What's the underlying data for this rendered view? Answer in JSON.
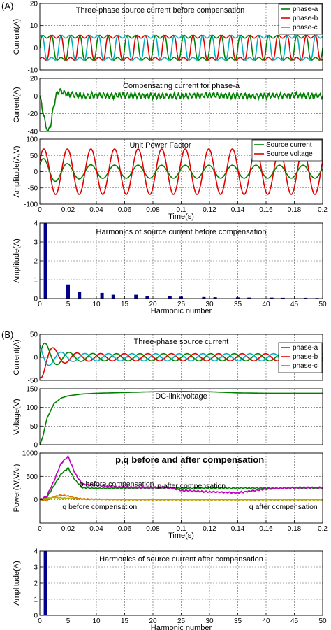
{
  "panels_label": {
    "a": "(A)",
    "b": "(B)"
  },
  "chart_data": [
    {
      "id": "a1",
      "type": "line",
      "title": "Three-phase source current before compensation",
      "ylabel": "Current(A)",
      "xlim": [
        0,
        0.2
      ],
      "ylim": [
        -10,
        20
      ],
      "xticks": [],
      "yticks": [
        -10,
        0,
        10,
        20
      ],
      "grid": true,
      "legend": {
        "position": "top-right",
        "entries": [
          "phase-a",
          "phase-b",
          "phase-c"
        ]
      },
      "series": [
        {
          "name": "phase-a",
          "color": "#008000",
          "kind": "sine",
          "amp": 6,
          "freq": 50,
          "phase": 0,
          "offset": 0,
          "squareness": 0.7
        },
        {
          "name": "phase-b",
          "color": "#e00000",
          "kind": "sine",
          "amp": 6,
          "freq": 50,
          "phase": -2.094,
          "offset": 0,
          "squareness": 0.7
        },
        {
          "name": "phase-c",
          "color": "#00b0c0",
          "kind": "sine",
          "amp": 6,
          "freq": 50,
          "phase": 2.094,
          "offset": 0,
          "squareness": 0.7
        }
      ]
    },
    {
      "id": "a2",
      "type": "line",
      "title": "Compensating current for phase-a",
      "ylabel": "Current(A)",
      "xlim": [
        0,
        0.2
      ],
      "ylim": [
        -40,
        20
      ],
      "xticks": [],
      "yticks": [
        -40,
        -20,
        0,
        20
      ],
      "grid": true,
      "series": [
        {
          "name": "",
          "color": "#008000",
          "kind": "points",
          "x": [
            0,
            0.002,
            0.004,
            0.006,
            0.008,
            0.01,
            0.012,
            0.014,
            0.016,
            0.018,
            0.02,
            0.025,
            0.03,
            0.04,
            0.05,
            0.06,
            0.08,
            0.1,
            0.12,
            0.14,
            0.16,
            0.18,
            0.2
          ],
          "y": [
            0,
            -15,
            -32,
            -40,
            -30,
            -10,
            3,
            6,
            5,
            3,
            2,
            1,
            0,
            1,
            0,
            1,
            0,
            0,
            1,
            0,
            0,
            1,
            0
          ],
          "ripple": 2.5
        }
      ]
    },
    {
      "id": "a3",
      "type": "line",
      "title": "Unit Power Factor",
      "ylabel": "Amplitude(A,V)",
      "xlabel": "Time(s)",
      "xlim": [
        0,
        0.2
      ],
      "ylim": [
        -100,
        100
      ],
      "xticks": [
        0,
        0.02,
        0.04,
        0.06,
        0.08,
        0.1,
        0.12,
        0.14,
        0.16,
        0.18,
        0.2
      ],
      "yticks": [
        -100,
        -50,
        0,
        50,
        100
      ],
      "grid": true,
      "legend": {
        "position": "top-right",
        "entries": [
          "Source current",
          "Source voltage"
        ]
      },
      "series": [
        {
          "name": "Source current",
          "color": "#008000",
          "kind": "sine",
          "amp": 20,
          "freq": 60,
          "phase": 0.5,
          "offset": 0,
          "squareness": 0,
          "start_amp": 45,
          "decay": 0.012
        },
        {
          "name": "Source voltage",
          "color": "#e00000",
          "kind": "sine",
          "amp": 70,
          "freq": 60,
          "phase": 0.5,
          "offset": 0,
          "squareness": 0
        }
      ]
    },
    {
      "id": "a4",
      "type": "bar",
      "title": "Harmonics of source current before compensation",
      "ylabel": "Amplitude(A)",
      "xlabel": "Harmonic number",
      "xlim": [
        0,
        50
      ],
      "ylim": [
        0,
        4
      ],
      "xticks": [
        0,
        5,
        10,
        15,
        20,
        25,
        30,
        35,
        40,
        45,
        50
      ],
      "yticks": [
        0,
        1,
        2,
        3,
        4
      ],
      "grid": true,
      "color": "#00008b",
      "x": [
        1,
        5,
        7,
        11,
        13,
        17,
        19,
        23,
        25,
        29,
        31,
        35,
        37,
        41,
        43,
        47,
        49
      ],
      "values": [
        4.05,
        0.75,
        0.35,
        0.3,
        0.2,
        0.2,
        0.12,
        0.12,
        0.1,
        0.08,
        0.07,
        0.06,
        0.05,
        0.05,
        0.04,
        0.04,
        0.03
      ]
    },
    {
      "id": "b1",
      "type": "line",
      "title": "Three-phase source current",
      "ylabel": "Current(A)",
      "xlim": [
        0,
        0.2
      ],
      "ylim": [
        -50,
        50
      ],
      "xticks": [],
      "yticks": [
        -50,
        0,
        50
      ],
      "grid": true,
      "legend": {
        "position": "right",
        "entries": [
          "phase-a",
          "phase-b",
          "phase-c"
        ]
      },
      "series": [
        {
          "name": "phase-a",
          "color": "#008000",
          "kind": "sine",
          "amp": 8,
          "freq": 60,
          "phase": 0,
          "offset": 0,
          "squareness": 0,
          "start_amp": 45,
          "decay": 0.008
        },
        {
          "name": "phase-b",
          "color": "#e00000",
          "kind": "sine",
          "amp": 8,
          "freq": 60,
          "phase": -2.094,
          "offset": 0,
          "squareness": 0,
          "start_amp": 50,
          "decay": 0.008
        },
        {
          "name": "phase-c",
          "color": "#00b0c0",
          "kind": "sine",
          "amp": 8,
          "freq": 60,
          "phase": 2.094,
          "offset": 0,
          "squareness": 0,
          "start_amp": 30,
          "decay": 0.008
        }
      ]
    },
    {
      "id": "b2",
      "type": "line",
      "title": "DC-link voltage",
      "ylabel": "Voltage(V)",
      "xlim": [
        0,
        0.2
      ],
      "ylim": [
        0,
        150
      ],
      "xticks": [],
      "yticks": [
        0,
        50,
        100,
        150
      ],
      "grid": true,
      "series": [
        {
          "name": "",
          "color": "#008000",
          "kind": "points",
          "x": [
            0,
            0.002,
            0.005,
            0.01,
            0.015,
            0.02,
            0.03,
            0.04,
            0.06,
            0.08,
            0.1,
            0.12,
            0.14,
            0.16,
            0.18,
            0.2
          ],
          "y": [
            0,
            20,
            70,
            110,
            125,
            131,
            136,
            138,
            140,
            142,
            143,
            142,
            139,
            138,
            138,
            138
          ],
          "ripple": 0
        }
      ]
    },
    {
      "id": "b3",
      "type": "line",
      "title": "p,q before and after compensation",
      "ylabel": "Power(W,VAr)",
      "xlabel": "Time(s)",
      "xlim": [
        0,
        0.2
      ],
      "ylim": [
        -500,
        1000
      ],
      "xticks": [
        0,
        0.02,
        0.04,
        0.06,
        0.08,
        0.1,
        0.12,
        0.14,
        0.16,
        0.18,
        0.2
      ],
      "yticks": [
        0,
        500,
        1000
      ],
      "grid": true,
      "annotations": [
        {
          "text": "p before compensation",
          "x": 0.028,
          "y": 290
        },
        {
          "text": "p after compensation",
          "x": 0.083,
          "y": 250
        },
        {
          "text": "q before compensation",
          "x": 0.016,
          "y": -200
        },
        {
          "text": "q after compensation",
          "x": 0.148,
          "y": -200
        }
      ],
      "series": [
        {
          "name": "p before compensation",
          "color": "#008000",
          "kind": "points",
          "x": [
            0,
            0.005,
            0.01,
            0.015,
            0.02,
            0.025,
            0.03,
            0.035,
            0.04,
            0.06,
            0.08,
            0.1,
            0.12,
            0.14,
            0.16,
            0.18,
            0.2
          ],
          "y": [
            0,
            50,
            300,
            550,
            680,
            420,
            260,
            250,
            245,
            250,
            250,
            250,
            250,
            250,
            250,
            250,
            250
          ],
          "ripple": 10
        },
        {
          "name": "p after compensation",
          "color": "#c000c0",
          "kind": "points",
          "x": [
            0,
            0.005,
            0.01,
            0.015,
            0.02,
            0.025,
            0.03,
            0.035,
            0.04,
            0.05,
            0.07,
            0.09,
            0.1,
            0.12,
            0.14,
            0.16,
            0.18,
            0.2
          ],
          "y": [
            0,
            80,
            400,
            780,
            930,
            560,
            330,
            320,
            310,
            280,
            260,
            270,
            200,
            170,
            150,
            230,
            260,
            260
          ],
          "ripple": 12
        },
        {
          "name": "q before compensation",
          "color": "#e07000",
          "kind": "points",
          "x": [
            0,
            0.005,
            0.01,
            0.015,
            0.02,
            0.025,
            0.03,
            0.04,
            0.06,
            0.1,
            0.14,
            0.2
          ],
          "y": [
            0,
            -10,
            60,
            100,
            80,
            40,
            20,
            10,
            0,
            0,
            0,
            0
          ],
          "ripple": 8
        },
        {
          "name": "q after compensation",
          "color": "#b0b000",
          "kind": "points",
          "x": [
            0,
            0.005,
            0.01,
            0.02,
            0.03,
            0.05,
            0.1,
            0.15,
            0.2
          ],
          "y": [
            0,
            30,
            50,
            30,
            10,
            5,
            0,
            0,
            0
          ],
          "ripple": 6
        }
      ]
    },
    {
      "id": "b4",
      "type": "bar",
      "title": "Harmonics of  source current after compensation",
      "ylabel": "Amplitude(A)",
      "xlabel": "Harmonic number",
      "xlim": [
        0,
        50
      ],
      "ylim": [
        0,
        4
      ],
      "xticks": [
        0,
        5,
        10,
        15,
        20,
        25,
        30,
        35,
        40,
        45,
        50
      ],
      "yticks": [
        0,
        1,
        2,
        3,
        4
      ],
      "grid": true,
      "color": "#00008b",
      "x": [
        1,
        5,
        7,
        11,
        13,
        17,
        19,
        23,
        25,
        29,
        31,
        35,
        37,
        41,
        43,
        47,
        49
      ],
      "values": [
        4.25,
        0.03,
        0.02,
        0.02,
        0.02,
        0.01,
        0.01,
        0.01,
        0.01,
        0.01,
        0.01,
        0.01,
        0.01,
        0.01,
        0.01,
        0.01,
        0.01
      ]
    }
  ]
}
